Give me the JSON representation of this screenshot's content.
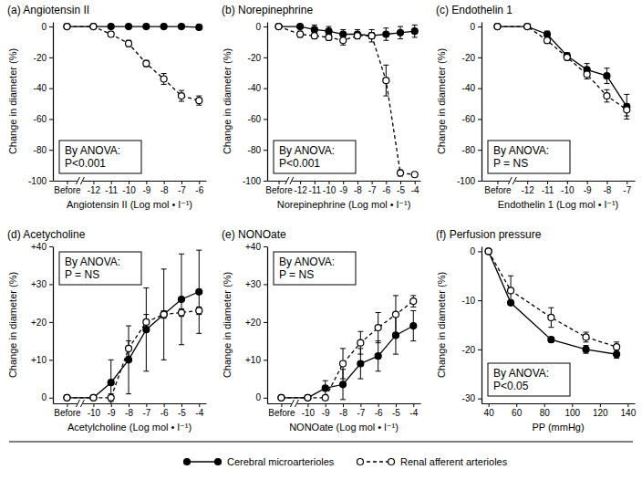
{
  "chart_data": [
    {
      "type": "line",
      "title": "(a) Angiotensin II",
      "x_label": "Angiotensin II (Log mol • l⁻¹)",
      "y_label": "Change in diameter (%)",
      "annotations": [
        "By ANOVA:",
        "P<0.001"
      ],
      "legend": "bottom",
      "x": [
        -13.5,
        -12,
        -11,
        -10,
        -9,
        -8,
        -7,
        -6
      ],
      "xlim": [
        -14.3,
        -5.6
      ],
      "xticks": [
        {
          "value": -13.5,
          "label": "Before"
        },
        -12,
        -11,
        -10,
        -9,
        -8,
        -7,
        -6
      ],
      "ylim": [
        -100,
        3
      ],
      "yticks": [
        0,
        -20,
        -40,
        -60,
        -80,
        -100
      ],
      "series": [
        {
          "name": "Cerebral microarterioles",
          "color": "#000000",
          "marker": "circle",
          "line_style": "solid",
          "values": [
            0,
            0,
            0,
            0,
            0,
            0,
            0,
            -0.5
          ],
          "errors": [
            0,
            0,
            0.5,
            0.5,
            0.5,
            0.5,
            0.5,
            0.5
          ]
        },
        {
          "name": "Renal afferent arterioles",
          "color": "#000000",
          "marker": "open-circle",
          "line_style": "dashed",
          "values": [
            0,
            0,
            -5,
            -11,
            -24,
            -34,
            -45,
            -48
          ],
          "errors": [
            0,
            0,
            1.5,
            2,
            2,
            3.5,
            3.5,
            3
          ]
        }
      ]
    },
    {
      "type": "line",
      "title": "(b) Norepinephrine",
      "x_label": "Norepinephrine (Log mol • l⁻¹)",
      "y_label": "Change in diameter (%)",
      "annotations": [
        "By ANOVA:",
        "P<0.001"
      ],
      "x": [
        -13.5,
        -12,
        -11,
        -10,
        -9,
        -8,
        -7,
        -6,
        -5,
        -4
      ],
      "xlim": [
        -14.3,
        -3.6
      ],
      "xticks": [
        {
          "value": -13.5,
          "label": "Before"
        },
        -12,
        -11,
        -10,
        -9,
        -8,
        -7,
        -6,
        -5,
        -4
      ],
      "ylim": [
        -100,
        3
      ],
      "yticks": [
        0,
        -20,
        -40,
        -60,
        -80,
        -100
      ],
      "series": [
        {
          "name": "Cerebral microarterioles",
          "color": "#000000",
          "marker": "circle",
          "line_style": "solid",
          "values": [
            0,
            0,
            -2,
            -3,
            -5,
            -5,
            -6,
            -5,
            -4,
            -3
          ],
          "errors": [
            0,
            1,
            3,
            3,
            3,
            3,
            4,
            4,
            4,
            4
          ]
        },
        {
          "name": "Renal afferent arterioles",
          "color": "#000000",
          "marker": "open-circle",
          "line_style": "dashed",
          "values": [
            0,
            -5,
            -6,
            -7,
            -9,
            -6,
            -6,
            -35,
            -95,
            -96
          ],
          "errors": [
            0,
            2,
            2,
            2,
            3,
            2,
            2,
            10,
            2,
            1
          ]
        }
      ]
    },
    {
      "type": "line",
      "title": "(c) Endothelin 1",
      "x_label": "Endothelin 1 (Log mol • l⁻¹)",
      "y_label": "Change in diameter (%)",
      "annotations": [
        "By ANOVA:",
        "P = NS"
      ],
      "x": [
        -13.5,
        -12,
        -11,
        -10,
        -9,
        -8,
        -7
      ],
      "xlim": [
        -14.3,
        -6.6
      ],
      "xticks": [
        {
          "value": -13.5,
          "label": "Before"
        },
        -12,
        -11,
        -10,
        -9,
        -8,
        -7
      ],
      "ylim": [
        -100,
        3
      ],
      "yticks": [
        0,
        -20,
        -40,
        -60,
        -80,
        -100
      ],
      "series": [
        {
          "name": "Cerebral microarterioles",
          "color": "#000000",
          "marker": "circle",
          "line_style": "solid",
          "values": [
            0,
            0,
            -5,
            -19,
            -28,
            -32,
            -52
          ],
          "errors": [
            0,
            0,
            2,
            2,
            4,
            5,
            8
          ]
        },
        {
          "name": "Renal afferent arterioles",
          "color": "#000000",
          "marker": "open-circle",
          "line_style": "dashed",
          "values": [
            0,
            0,
            -9,
            -20,
            -31,
            -45,
            -54
          ],
          "errors": [
            0,
            0,
            2,
            2,
            3,
            4,
            4
          ]
        }
      ]
    },
    {
      "type": "line",
      "title": "(d) Acetycholine",
      "x_label": "Acetylcholine (Log mol • l⁻¹)",
      "y_label": "Change in diameter (%)",
      "annotations": [
        "By ANOVA:",
        "P = NS"
      ],
      "x": [
        -11.5,
        -10,
        -9,
        -8,
        -7,
        -6,
        -5,
        -4
      ],
      "xlim": [
        -12.3,
        -3.6
      ],
      "xticks": [
        {
          "value": -11.5,
          "label": "Before"
        },
        -10,
        -9,
        -8,
        -7,
        -6,
        -5,
        -4
      ],
      "ylim": [
        -1.5,
        40
      ],
      "yticks": [
        0,
        {
          "value": 10,
          "label": "+10"
        },
        {
          "value": 20,
          "label": "+20"
        },
        {
          "value": 30,
          "label": "+30"
        },
        {
          "value": 40,
          "label": "+40"
        }
      ],
      "series": [
        {
          "name": "Cerebral microarterioles",
          "color": "#000000",
          "marker": "circle",
          "line_style": "solid",
          "values": [
            0,
            0,
            4,
            10,
            18,
            22,
            26,
            28
          ],
          "errors": [
            0,
            0,
            6,
            9,
            11,
            12,
            12,
            11
          ]
        },
        {
          "name": "Renal afferent arterioles",
          "color": "#000000",
          "marker": "open-circle",
          "line_style": "dashed",
          "values": [
            0,
            0,
            0,
            13,
            20,
            22,
            22.5,
            23
          ],
          "errors": [
            0,
            0,
            1,
            2,
            2,
            1,
            1,
            1
          ]
        }
      ]
    },
    {
      "type": "line",
      "title": "(e) NONOate",
      "x_label": "NONOate (Log mol • l⁻¹)",
      "y_label": "Change in diameter (%)",
      "annotations": [
        "By ANOVA:",
        "P = NS"
      ],
      "x": [
        -11.5,
        -10,
        -9,
        -8,
        -7,
        -6,
        -5,
        -4
      ],
      "xlim": [
        -12.3,
        -3.6
      ],
      "xticks": [
        {
          "value": -11.5,
          "label": "Before"
        },
        -10,
        -9,
        -8,
        -7,
        -6,
        -5,
        -4
      ],
      "ylim": [
        -1.5,
        40
      ],
      "yticks": [
        0,
        {
          "value": 10,
          "label": "+10"
        },
        {
          "value": 20,
          "label": "+20"
        },
        {
          "value": 30,
          "label": "+30"
        },
        {
          "value": 40,
          "label": "+40"
        }
      ],
      "series": [
        {
          "name": "Cerebral microarterioles",
          "color": "#000000",
          "marker": "circle",
          "line_style": "solid",
          "values": [
            0,
            0,
            2.5,
            3.5,
            9,
            11,
            16.5,
            19
          ],
          "errors": [
            0,
            0,
            2,
            4,
            4,
            4,
            5,
            4
          ]
        },
        {
          "name": "Renal afferent arterioles",
          "color": "#000000",
          "marker": "open-circle",
          "line_style": "dashed",
          "values": [
            0,
            0,
            0,
            9,
            14.5,
            18.5,
            22,
            25.5
          ],
          "errors": [
            0,
            0,
            0,
            4,
            3,
            4,
            5,
            1.5
          ]
        }
      ]
    },
    {
      "type": "line",
      "title": "(f) Perfusion pressure",
      "x_label": "PP (mmHg)",
      "y_label": "Change in diameter (%)",
      "annotations": [
        "By ANOVA:",
        "P<0.05"
      ],
      "x": [
        40,
        56,
        85,
        110,
        132
      ],
      "xlim": [
        35,
        145
      ],
      "xticks": [
        40,
        60,
        80,
        100,
        120,
        140
      ],
      "ylim": [
        -31,
        1
      ],
      "yticks": [
        0,
        -10,
        -20,
        -30
      ],
      "series": [
        {
          "name": "Cerebral microarterioles",
          "color": "#000000",
          "marker": "circle",
          "line_style": "solid",
          "values": [
            0,
            -10.5,
            -18,
            -20,
            -21
          ],
          "errors": [
            0,
            0.5,
            0.5,
            0.8,
            0.8
          ]
        },
        {
          "name": "Renal afferent arterioles",
          "color": "#000000",
          "marker": "open-circle",
          "line_style": "dashed",
          "values": [
            0,
            -8,
            -13.5,
            -17.5,
            -19.5
          ],
          "errors": [
            0,
            3,
            2,
            1,
            1
          ]
        }
      ]
    }
  ]
}
